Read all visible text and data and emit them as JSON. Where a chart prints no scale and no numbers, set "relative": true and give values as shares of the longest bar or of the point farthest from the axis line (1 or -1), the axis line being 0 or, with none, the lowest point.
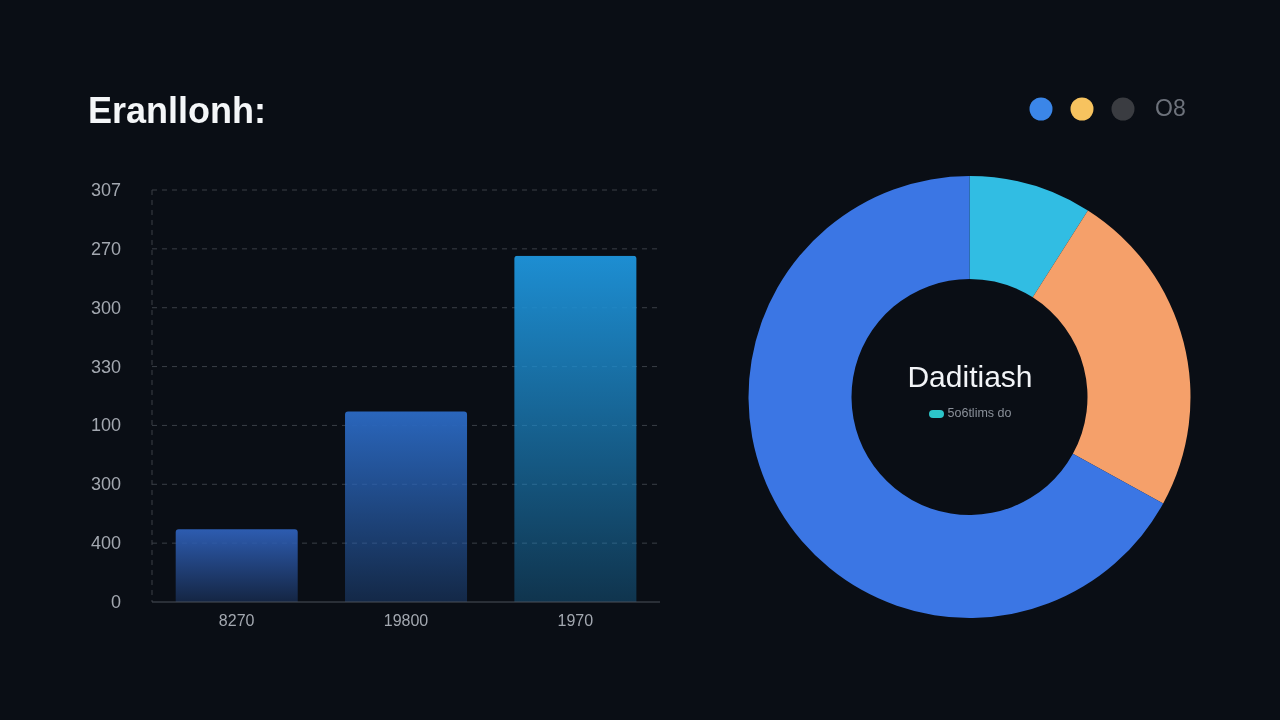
{
  "chart_data": [
    {
      "type": "bar",
      "title": "Eranllonh:",
      "categories": [
        "8270",
        "19800",
        "1970"
      ],
      "values": [
        0.21,
        0.55,
        1
      ],
      "colors": [
        "#2d5cb0",
        "#2a66bc",
        "#1d8ed2"
      ],
      "relative": true,
      "grid": "y",
      "annotations": [
        "307",
        "270",
        "300",
        "330",
        "100",
        "300",
        "400",
        "0"
      ]
    },
    {
      "type": "donut",
      "title": "Daditiash",
      "categories": [
        null,
        null,
        null
      ],
      "values": [
        9,
        24,
        67
      ],
      "colors": [
        "#31bde3",
        "#f5a06a",
        "#3b76e4"
      ],
      "annotations": [
        "5o6tlims do",
        "O8"
      ]
    }
  ]
}
